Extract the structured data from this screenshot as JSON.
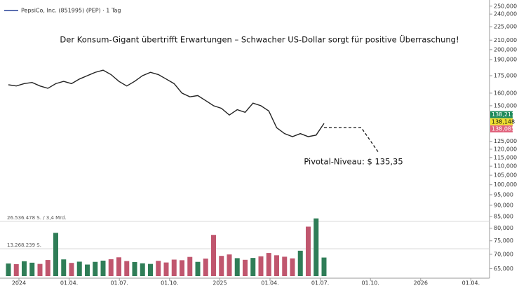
{
  "chart_data": {
    "type": "line",
    "title": "Der Konsum-Gigant übertrifft Erwartungen – Schwacher US-Dollar sorgt für positive Überraschung!",
    "legend": "PepsiCo, Inc. (851995) (PEP) · 1 Tag",
    "annotation": "Pivotal-Niveau: $ 135,35",
    "log_scale": true,
    "color": "#222222",
    "ylim": [
      63.5,
      258
    ],
    "yticks": [
      {
        "value": 65,
        "label": "65,000"
      },
      {
        "value": 70,
        "label": "70,000"
      },
      {
        "value": 75,
        "label": "75,000"
      },
      {
        "value": 80,
        "label": "80,000"
      },
      {
        "value": 85,
        "label": "85,000"
      },
      {
        "value": 90,
        "label": "90,000"
      },
      {
        "value": 95,
        "label": "95,000"
      },
      {
        "value": 100,
        "label": "100,000"
      },
      {
        "value": 105,
        "label": "105,000"
      },
      {
        "value": 110,
        "label": "110,000"
      },
      {
        "value": 115,
        "label": "115,000"
      },
      {
        "value": 120,
        "label": "120,000"
      },
      {
        "value": 125,
        "label": "125,000"
      },
      {
        "value": 150,
        "label": "150,000"
      },
      {
        "value": 160,
        "label": "160,000"
      },
      {
        "value": 175,
        "label": "175,000"
      },
      {
        "value": 190,
        "label": "190,000"
      },
      {
        "value": 200,
        "label": "200,000"
      },
      {
        "value": 210,
        "label": "210,000"
      },
      {
        "value": 225,
        "label": "225,000"
      },
      {
        "value": 240,
        "label": "240,000"
      },
      {
        "value": 250,
        "label": "250,000"
      }
    ],
    "x_axis_labels": [
      "2024",
      "01.04.",
      "01.07.",
      "01.10.",
      "2025",
      "01.04.",
      "01.07.",
      "01.10.",
      "2026",
      "01.04."
    ],
    "values": [
      167,
      166,
      168,
      169,
      166,
      164,
      168,
      170,
      168,
      172,
      175,
      178,
      180,
      176,
      170,
      166,
      170,
      175,
      178,
      176,
      172,
      168,
      160,
      157,
      158,
      154,
      150,
      148,
      143,
      147,
      145,
      152,
      150,
      146,
      134,
      130,
      128,
      130,
      128,
      129,
      137
    ],
    "price_labels": [
      {
        "value": 138.211,
        "label": "138,211",
        "color": "#1e8a5a"
      },
      {
        "value": 138.148,
        "label": "138,148",
        "color": "#f0e030"
      },
      {
        "value": 138.085,
        "label": "138,085",
        "color": "#e0607a"
      }
    ],
    "volume": {
      "up_color": "#2f7d57",
      "down_color": "#c0566e",
      "ticks": [
        {
          "value": 26536478,
          "label": "26.536.478 S. / 3,4 Mrd."
        },
        {
          "value": 13268239,
          "label": "13.268.239 S."
        }
      ],
      "values": [
        6100000,
        5800000,
        7200000,
        6500000,
        5900000,
        7800000,
        21000000,
        8100000,
        6400000,
        7000000,
        5600000,
        6900000,
        7500000,
        8200000,
        9100000,
        7300000,
        6800000,
        6200000,
        5900000,
        7400000,
        6600000,
        8000000,
        7700000,
        9300000,
        6900000,
        8500000,
        20000000,
        9800000,
        10500000,
        8700000,
        7900000,
        8800000,
        9600000,
        11200000,
        10100000,
        9400000,
        8600000,
        12300000,
        24000000,
        28000000,
        9000000
      ]
    }
  }
}
